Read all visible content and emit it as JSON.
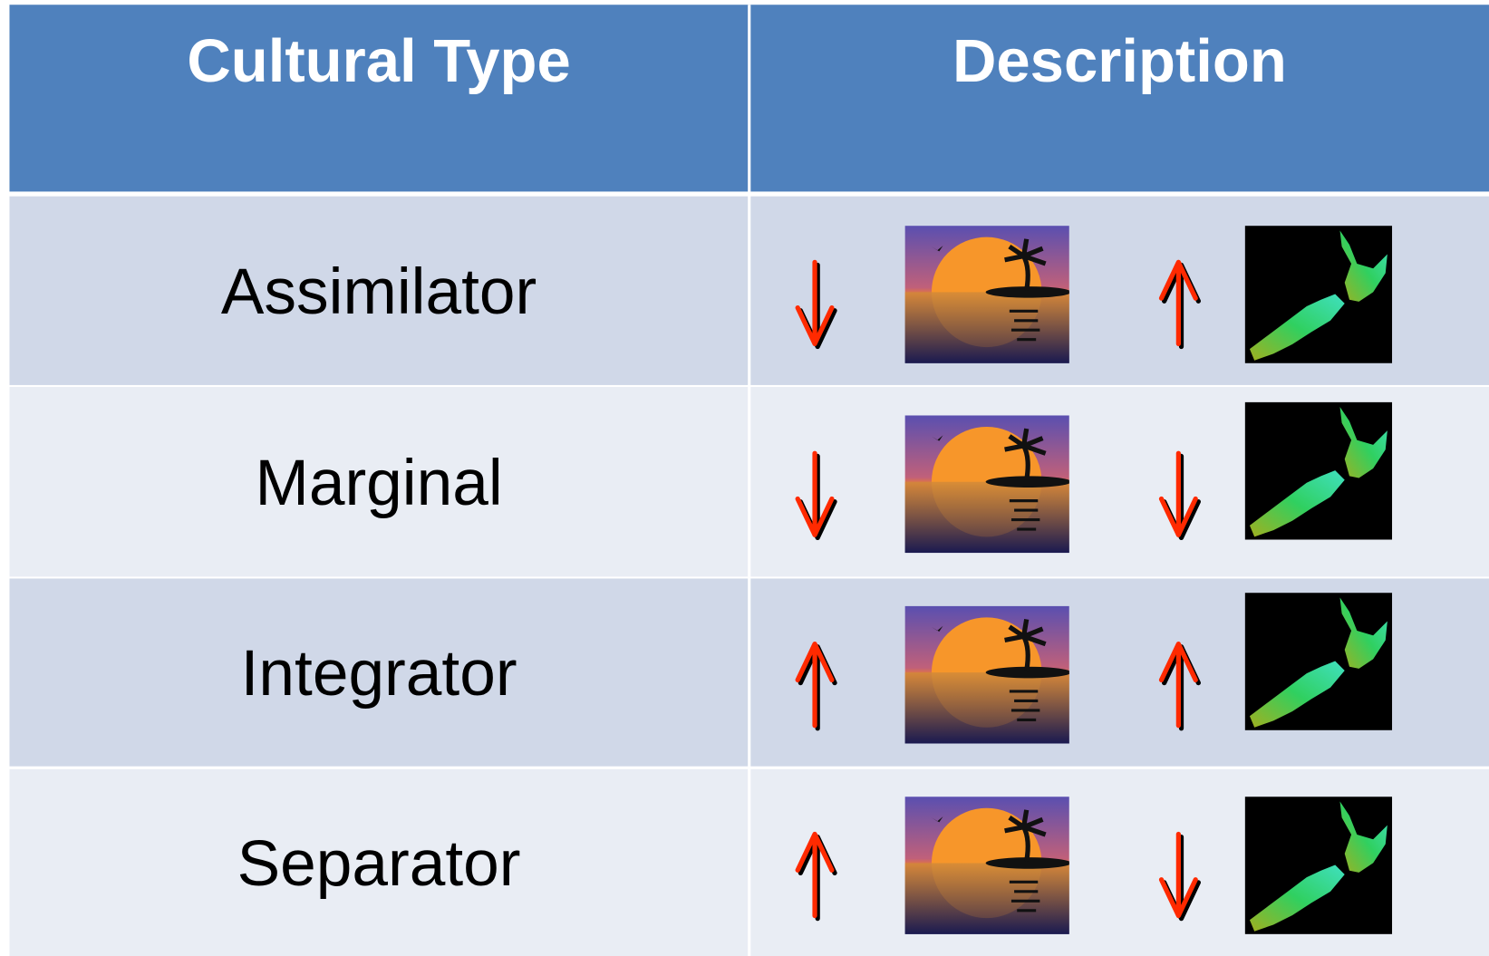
{
  "header": {
    "columns": [
      "Cultural Type",
      "Description"
    ]
  },
  "table": {
    "rows": [
      "Assimilator",
      "Marginal",
      "Integrator",
      "Separator"
    ]
  }
}
